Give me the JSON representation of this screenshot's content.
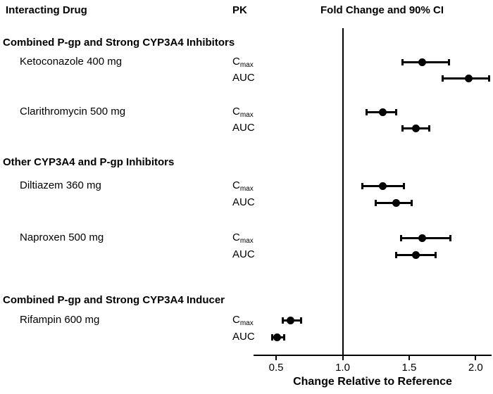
{
  "headers": {
    "interacting_drug": "Interacting Drug",
    "pk": "PK",
    "fold_change": "Fold Change and 90% CI"
  },
  "colors": {
    "foreground": "#000000",
    "background": "#ffffff"
  },
  "chart_data": {
    "type": "scatter",
    "subtype": "forest-plot",
    "title": "Fold Change and 90% CI",
    "xlabel": "Change Relative to Reference",
    "ci_level": "90%",
    "xlim": [
      0.33,
      2.12
    ],
    "reference_line": 1.0,
    "grid": false,
    "ticks": [
      {
        "value": 0.5,
        "label": "0.5"
      },
      {
        "value": 1.0,
        "label": "1.0"
      },
      {
        "value": 1.5,
        "label": "1.5"
      },
      {
        "value": 2.0,
        "label": "2.0"
      }
    ],
    "groups": [
      {
        "header": "Combined P-gp and Strong CYP3A4 Inhibitors",
        "drugs": [
          {
            "name": "Ketoconazole 400 mg",
            "rows": [
              {
                "pk_main": "C",
                "pk_sub": "max",
                "estimate": 1.6,
                "ci_low": 1.45,
                "ci_high": 1.8
              },
              {
                "pk_main": "AUC",
                "pk_sub": "",
                "estimate": 1.95,
                "ci_low": 1.75,
                "ci_high": 2.1
              }
            ]
          },
          {
            "name": "Clarithromycin 500 mg",
            "rows": [
              {
                "pk_main": "C",
                "pk_sub": "max",
                "estimate": 1.3,
                "ci_low": 1.18,
                "ci_high": 1.4
              },
              {
                "pk_main": "AUC",
                "pk_sub": "",
                "estimate": 1.55,
                "ci_low": 1.45,
                "ci_high": 1.65
              }
            ]
          }
        ]
      },
      {
        "header": "Other CYP3A4 and P-gp Inhibitors",
        "drugs": [
          {
            "name": "Diltiazem 360 mg",
            "rows": [
              {
                "pk_main": "C",
                "pk_sub": "max",
                "estimate": 1.3,
                "ci_low": 1.15,
                "ci_high": 1.46
              },
              {
                "pk_main": "AUC",
                "pk_sub": "",
                "estimate": 1.4,
                "ci_low": 1.25,
                "ci_high": 1.52
              }
            ]
          },
          {
            "name": "Naproxen 500 mg",
            "rows": [
              {
                "pk_main": "C",
                "pk_sub": "max",
                "estimate": 1.6,
                "ci_low": 1.44,
                "ci_high": 1.81
              },
              {
                "pk_main": "AUC",
                "pk_sub": "",
                "estimate": 1.55,
                "ci_low": 1.4,
                "ci_high": 1.7
              }
            ]
          }
        ]
      },
      {
        "header": "Combined P-gp and Strong CYP3A4 Inducer",
        "drugs": [
          {
            "name": "Rifampin 600 mg",
            "rows": [
              {
                "pk_main": "C",
                "pk_sub": "max",
                "estimate": 0.61,
                "ci_low": 0.55,
                "ci_high": 0.69
              },
              {
                "pk_main": "AUC",
                "pk_sub": "",
                "estimate": 0.51,
                "ci_low": 0.47,
                "ci_high": 0.56
              }
            ]
          }
        ]
      }
    ]
  }
}
